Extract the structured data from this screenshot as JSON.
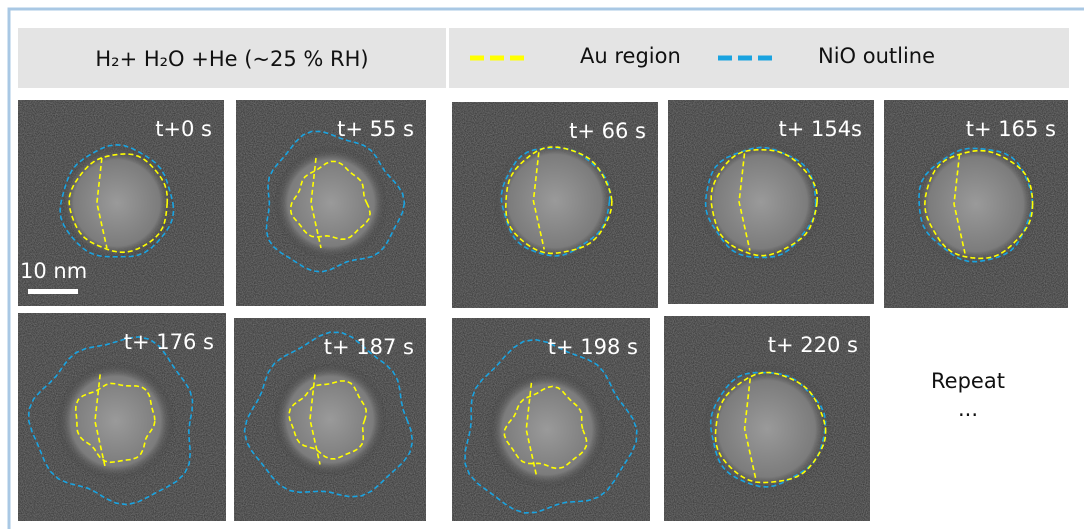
{
  "header": {
    "condition": "H₂+ H₂O +He (~25 % RH)",
    "legend": [
      {
        "label": "Au region",
        "color": "#ffff00"
      },
      {
        "label": "NiO outline",
        "color": "#1aa3e0"
      }
    ]
  },
  "frames": [
    {
      "label": "t+0 s"
    },
    {
      "label": "t+ 55 s"
    },
    {
      "label": "t+ 66 s"
    },
    {
      "label": "t+ 154s"
    },
    {
      "label": "t+ 165 s"
    },
    {
      "label": "t+ 176 s"
    },
    {
      "label": "t+ 187 s"
    },
    {
      "label": "t+ 198 s"
    },
    {
      "label": "t+ 220 s"
    }
  ],
  "scale_bar": "10 nm",
  "note": {
    "text": "Repeat",
    "ellipsis": "..."
  }
}
